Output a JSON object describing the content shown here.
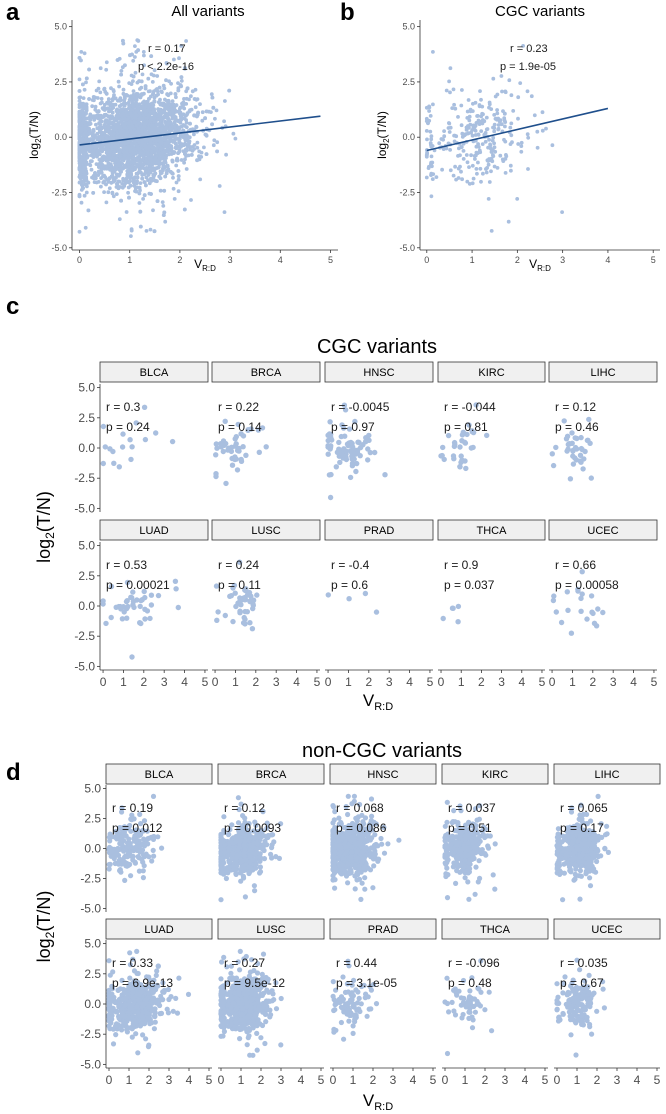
{
  "figure": {
    "panel_letters": [
      "a",
      "b",
      "c",
      "d"
    ],
    "colors": {
      "points": "#a9bfdf",
      "trend": "#1f4f8c",
      "strip_fill": "#f0f0f0",
      "strip_border": "#333333",
      "axis": "#333333"
    }
  },
  "chart_data": [
    {
      "id": "a",
      "type": "scatter",
      "title": "All variants",
      "xlabel": "V",
      "xlabel_sub": "R:D",
      "ylabel": "log",
      "ylabel_sub": "2",
      "ylabel_tail": "(T/N)",
      "xlim": [
        -0.15,
        5.15
      ],
      "ylim": [
        -5.1,
        5.3
      ],
      "xticks": [
        0,
        1,
        2,
        3,
        4,
        5
      ],
      "yticks": [
        -5.0,
        -2.5,
        0.0,
        2.5,
        5.0
      ],
      "ytick_labels": [
        "-5.0",
        "-2.5",
        "0.0",
        "2.5",
        "5.0"
      ],
      "annotation": {
        "r": "r = 0.17",
        "p": "p < 2.2e-16"
      },
      "trend": {
        "x": [
          0,
          4.8
        ],
        "y": [
          -0.35,
          0.95
        ]
      },
      "n_points": 3400,
      "x_center": 1.1,
      "x_spread": 0.6,
      "x_max": 4.8
    },
    {
      "id": "b",
      "type": "scatter",
      "title": "CGC variants",
      "xlabel": "V",
      "xlabel_sub": "R:D",
      "ylabel": "log",
      "ylabel_sub": "2",
      "ylabel_tail": "(T/N)",
      "xlim": [
        -0.15,
        5.15
      ],
      "ylim": [
        -5.1,
        5.3
      ],
      "xticks": [
        0,
        1,
        2,
        3,
        4,
        5
      ],
      "yticks": [
        -5.0,
        -2.5,
        0.0,
        2.5,
        5.0
      ],
      "ytick_labels": [
        "-5.0",
        "-2.5",
        "0.0",
        "2.5",
        "5.0"
      ],
      "annotation": {
        "r": "r = 0.23",
        "p": "p = 1.9e-05"
      },
      "trend": {
        "x": [
          0,
          4.0
        ],
        "y": [
          -0.6,
          1.3
        ]
      },
      "n_points": 300,
      "x_center": 1.2,
      "x_spread": 0.6,
      "x_max": 4.0
    },
    {
      "id": "c",
      "type": "scatter",
      "title": "CGC variants",
      "xlabel": "V",
      "xlabel_sub": "R:D",
      "ylabel": "log",
      "ylabel_sub": "2",
      "ylabel_tail": "(T/N)",
      "xlim": [
        -0.15,
        5.15
      ],
      "ylim": [
        -5.3,
        5.3
      ],
      "xticks": [
        0,
        1,
        2,
        3,
        4,
        5
      ],
      "yticks": [
        -5.0,
        -2.5,
        0.0,
        2.5,
        5.0
      ],
      "ytick_labels": [
        "-5.0",
        "-2.5",
        "0.0",
        "2.5",
        "5.0"
      ],
      "facets": [
        {
          "name": "BLCA",
          "r": "r = 0.3",
          "p": "p = 0.24",
          "n": 17,
          "xc": 1.3,
          "xs": 0.7
        },
        {
          "name": "BRCA",
          "r": "r = 0.22",
          "p": "p = 0.14",
          "n": 45,
          "xc": 1.1,
          "xs": 0.6
        },
        {
          "name": "HNSC",
          "r": "r = -0.0045",
          "p": "p = 0.97",
          "n": 75,
          "xc": 1.1,
          "xs": 0.6
        },
        {
          "name": "KIRC",
          "r": "r = -0.044",
          "p": "p = 0.81",
          "n": 32,
          "xc": 1.0,
          "xs": 0.5
        },
        {
          "name": "LIHC",
          "r": "r = 0.12",
          "p": "p = 0.46",
          "n": 38,
          "xc": 1.2,
          "xs": 0.5
        },
        {
          "name": "LUAD",
          "r": "r = 0.53",
          "p": "p = 0.00021",
          "n": 43,
          "xc": 1.5,
          "xs": 0.8
        },
        {
          "name": "LUSC",
          "r": "r = 0.24",
          "p": "p = 0.11",
          "n": 45,
          "xc": 1.2,
          "xs": 0.5
        },
        {
          "name": "PRAD",
          "r": "r = -0.4",
          "p": "p = 0.6",
          "n": 4,
          "xc": 1.0,
          "xs": 0.7
        },
        {
          "name": "THCA",
          "r": "r = 0.9",
          "p": "p = 0.037",
          "n": 5,
          "xc": 0.8,
          "xs": 0.4
        },
        {
          "name": "UCEC",
          "r": "r = 0.66",
          "p": "p = 0.00058",
          "n": 21,
          "xc": 1.3,
          "xs": 0.7
        }
      ]
    },
    {
      "id": "d",
      "type": "scatter",
      "title": "non-CGC variants",
      "xlabel": "V",
      "xlabel_sub": "R:D",
      "ylabel": "log",
      "ylabel_sub": "2",
      "ylabel_tail": "(T/N)",
      "xlim": [
        -0.15,
        5.15
      ],
      "ylim": [
        -5.3,
        5.3
      ],
      "xticks": [
        0,
        1,
        2,
        3,
        4,
        5
      ],
      "yticks": [
        -5.0,
        -2.5,
        0.0,
        2.5,
        5.0
      ],
      "ytick_labels": [
        "-5.0",
        "-2.5",
        "0.0",
        "2.5",
        "5.0"
      ],
      "facets": [
        {
          "name": "BLCA",
          "r": "r = 0.19",
          "p": "p = 0.012",
          "n": 170,
          "xc": 1.2,
          "xs": 0.6
        },
        {
          "name": "BRCA",
          "r": "r = 0.12",
          "p": "p = 0.0093",
          "n": 480,
          "xc": 1.1,
          "xs": 0.6
        },
        {
          "name": "HNSC",
          "r": "r = 0.068",
          "p": "p = 0.086",
          "n": 600,
          "xc": 1.0,
          "xs": 0.6
        },
        {
          "name": "KIRC",
          "r": "r = 0.037",
          "p": "p = 0.51",
          "n": 320,
          "xc": 1.0,
          "xs": 0.5
        },
        {
          "name": "LIHC",
          "r": "r = 0.065",
          "p": "p = 0.17",
          "n": 450,
          "xc": 1.2,
          "xs": 0.5
        },
        {
          "name": "LUAD",
          "r": "r = 0.33",
          "p": "p = 6.9e-13",
          "n": 450,
          "xc": 1.3,
          "xs": 0.7
        },
        {
          "name": "LUSC",
          "r": "r = 0.27",
          "p": "p = 9.5e-12",
          "n": 640,
          "xc": 1.2,
          "xs": 0.6
        },
        {
          "name": "PRAD",
          "r": "r = 0.44",
          "p": "p = 3.1e-05",
          "n": 90,
          "xc": 1.0,
          "xs": 0.5
        },
        {
          "name": "THCA",
          "r": "r = -0.096",
          "p": "p = 0.48",
          "n": 55,
          "xc": 1.2,
          "xs": 0.4
        },
        {
          "name": "UCEC",
          "r": "r = 0.035",
          "p": "p = 0.67",
          "n": 150,
          "xc": 1.0,
          "xs": 0.5
        }
      ]
    }
  ]
}
